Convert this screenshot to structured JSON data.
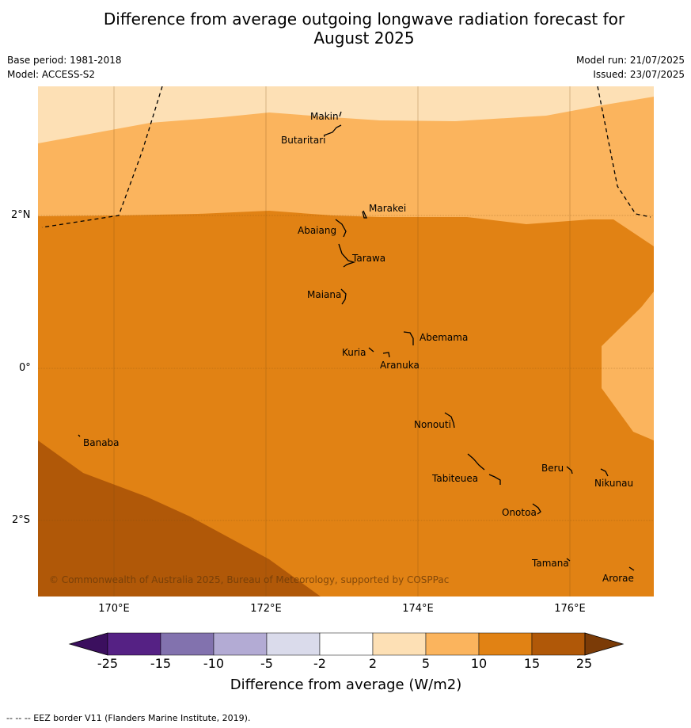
{
  "title": "Difference from average outgoing longwave radiation forecast for August 2025",
  "title_line1": "Difference from average outgoing longwave radiation forecast for",
  "title_line2": "August 2025",
  "base_period": "Base period: 1981-2018",
  "model": "Model: ACCESS-S2",
  "model_run": "Model run: 21/07/2025",
  "issued": "Issued: 23/07/2025",
  "latitude_labels": [
    "2°N",
    "0°",
    "2°S"
  ],
  "longitude_labels": [
    "170°E",
    "172°E",
    "174°E",
    "176°E"
  ],
  "places": [
    "Makin",
    "Butaritari",
    "Marakei",
    "Abaiang",
    "Tarawa",
    "Maiana",
    "Abemama",
    "Kuria",
    "Aranuka",
    "Nonouti",
    "Banaba",
    "Beru",
    "Nikunau",
    "Tabiteuea",
    "Onotoa",
    "Tamana",
    "Arorae"
  ],
  "copyright": "© Commonwealth of Australia 2025, Bureau of Meteorology, supported by COSPPac",
  "colorbar": {
    "label": "Difference from average (W/m2)",
    "ticks": [
      "-25",
      "-15",
      "-10",
      "-5",
      "-2",
      "2",
      "5",
      "10",
      "15",
      "25"
    ],
    "colors": [
      "#3b0f5e",
      "#552184",
      "#8272ae",
      "#b3abd4",
      "#dadbeb",
      "#ffffff",
      "#fde0b5",
      "#fbb45d",
      "#e18214",
      "#b05808",
      "#7b3b07"
    ]
  },
  "legend_note": "--  --  -- EEZ border V11 (Flanders Marine Institute, 2019)."
}
